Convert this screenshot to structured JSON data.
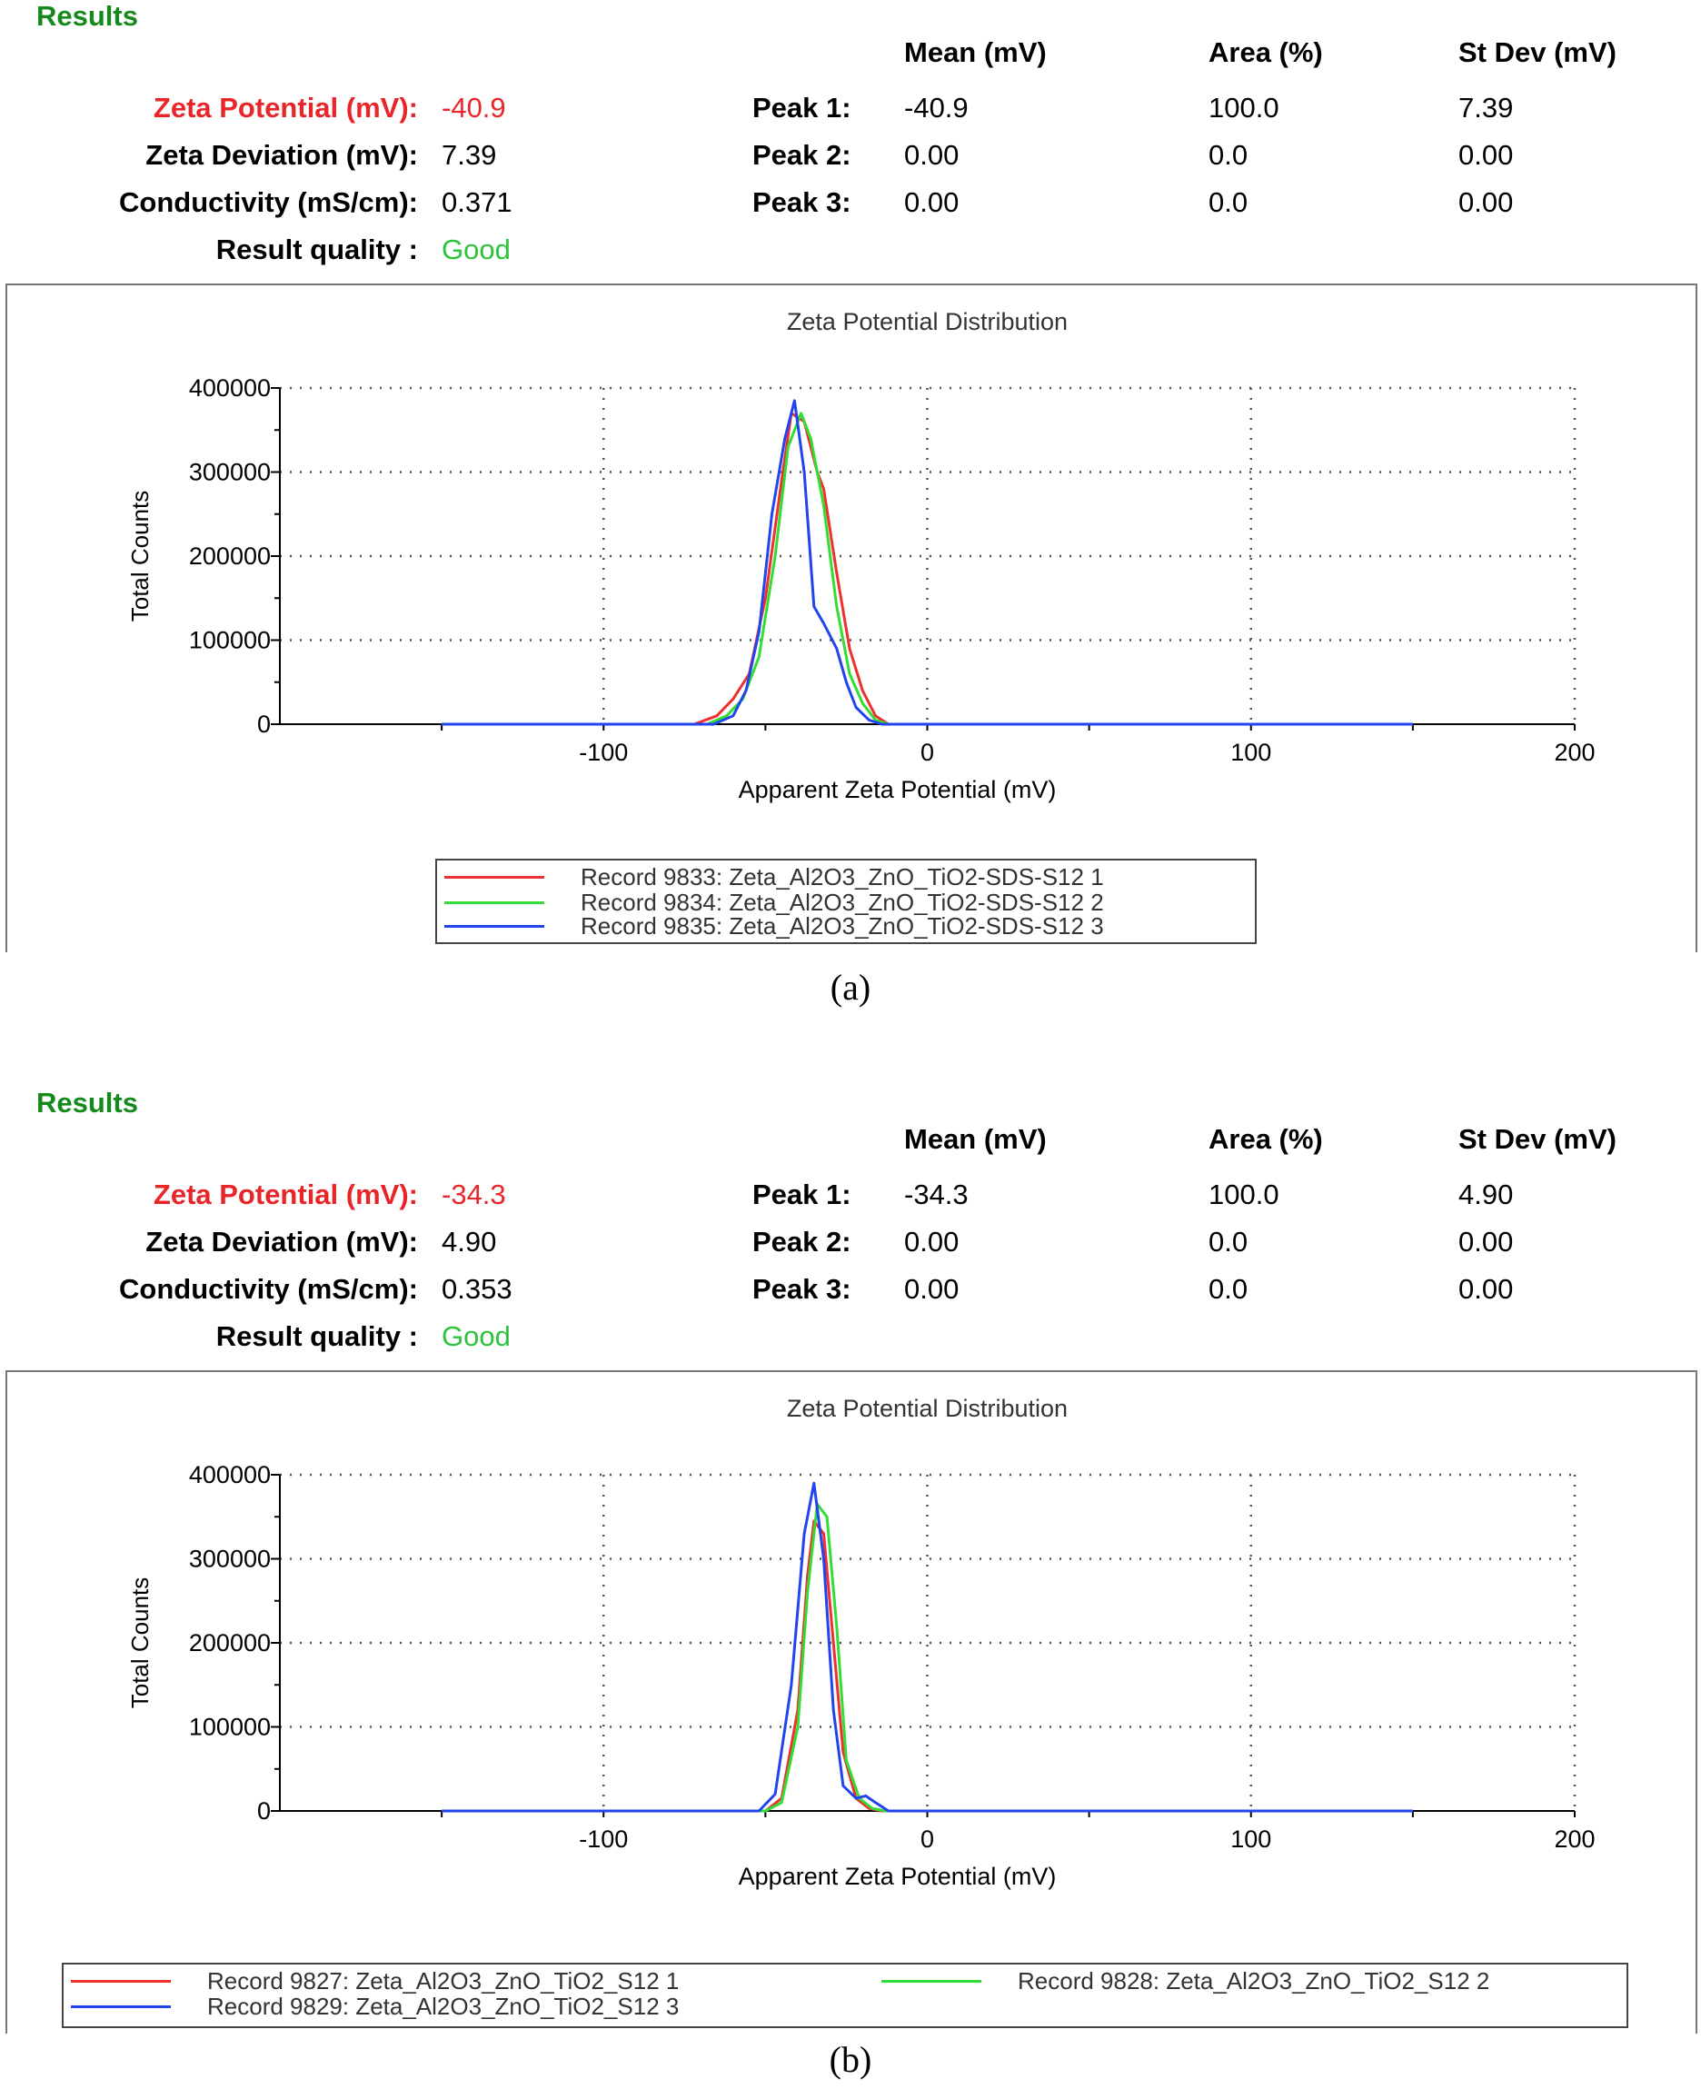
{
  "panels": [
    {
      "caption": "(a)",
      "results": {
        "heading": "Results",
        "columns": {
          "mean": "Mean (mV)",
          "area": "Area (%)",
          "stdev": "St Dev (mV)"
        },
        "zeta_potential_label": "Zeta Potential (mV):",
        "zeta_potential_value": "-40.9",
        "zeta_deviation_label": "Zeta Deviation (mV):",
        "zeta_deviation_value": "7.39",
        "conductivity_label": "Conductivity (mS/cm):",
        "conductivity_value": "0.371",
        "quality_label": "Result quality :",
        "quality_value": "Good",
        "peaks": [
          {
            "label": "Peak 1:",
            "mean": "-40.9",
            "area": "100.0",
            "stdev": "7.39"
          },
          {
            "label": "Peak 2:",
            "mean": "0.00",
            "area": "0.0",
            "stdev": "0.00"
          },
          {
            "label": "Peak 3:",
            "mean": "0.00",
            "area": "0.0",
            "stdev": "0.00"
          }
        ]
      }
    },
    {
      "caption": "(b)",
      "results": {
        "heading": "Results",
        "columns": {
          "mean": "Mean (mV)",
          "area": "Area (%)",
          "stdev": "St Dev (mV)"
        },
        "zeta_potential_label": "Zeta Potential (mV):",
        "zeta_potential_value": "-34.3",
        "zeta_deviation_label": "Zeta Deviation (mV):",
        "zeta_deviation_value": "4.90",
        "conductivity_label": "Conductivity (mS/cm):",
        "conductivity_value": "0.353",
        "quality_label": "Result quality :",
        "quality_value": "Good",
        "peaks": [
          {
            "label": "Peak 1:",
            "mean": "-34.3",
            "area": "100.0",
            "stdev": "4.90"
          },
          {
            "label": "Peak 2:",
            "mean": "0.00",
            "area": "0.0",
            "stdev": "0.00"
          },
          {
            "label": "Peak 3:",
            "mean": "0.00",
            "area": "0.0",
            "stdev": "0.00"
          }
        ]
      }
    }
  ],
  "chart_data": [
    {
      "type": "line",
      "title": "Zeta Potential Distribution",
      "xlabel": "Apparent Zeta Potential (mV)",
      "ylabel": "Total Counts",
      "xlim": [
        -200,
        200
      ],
      "ylim": [
        0,
        400000
      ],
      "xticks": [
        -100,
        0,
        100,
        200
      ],
      "yticks": [
        0,
        100000,
        200000,
        300000,
        400000
      ],
      "ytick_labels": [
        "0",
        "100000",
        "200000",
        "300000",
        "400000"
      ],
      "grid": true,
      "legend_position": "bottom-center",
      "series": [
        {
          "name": "Record 9833: Zeta_Al2O3_ZnO_TiO2-SDS-S12 1",
          "color": "#ee3030",
          "x": [
            -150,
            -72,
            -65,
            -60,
            -55,
            -50,
            -45,
            -42,
            -38,
            -34,
            -32,
            -28,
            -24,
            -20,
            -16,
            -12,
            0,
            150
          ],
          "y": [
            0,
            0,
            10000,
            30000,
            60000,
            150000,
            290000,
            370000,
            360000,
            300000,
            280000,
            180000,
            90000,
            40000,
            10000,
            0,
            0,
            0
          ]
        },
        {
          "name": "Record 9834: Zeta_Al2O3_ZnO_TiO2-SDS-S12 2",
          "color": "#33dd33",
          "x": [
            -150,
            -68,
            -62,
            -57,
            -52,
            -47,
            -43,
            -39,
            -36,
            -32,
            -28,
            -24,
            -20,
            -16,
            -12,
            0,
            150
          ],
          "y": [
            0,
            0,
            10000,
            30000,
            80000,
            200000,
            330000,
            370000,
            340000,
            260000,
            140000,
            60000,
            25000,
            5000,
            0,
            0,
            0
          ]
        },
        {
          "name": "Record 9835: Zeta_Al2O3_ZnO_TiO2-SDS-S12 3",
          "color": "#2244ee",
          "x": [
            -150,
            -66,
            -60,
            -56,
            -52,
            -48,
            -44,
            -41,
            -38,
            -35,
            -32,
            -28,
            -25,
            -22,
            -18,
            -14,
            0,
            150
          ],
          "y": [
            0,
            0,
            10000,
            40000,
            110000,
            250000,
            340000,
            385000,
            300000,
            140000,
            120000,
            90000,
            50000,
            20000,
            5000,
            0,
            0,
            0
          ]
        }
      ],
      "legend_entries": [
        "Record 9833: Zeta_Al2O3_ZnO_TiO2-SDS-S12 1",
        "Record 9834: Zeta_Al2O3_ZnO_TiO2-SDS-S12 2",
        "Record 9835: Zeta_Al2O3_ZnO_TiO2-SDS-S12 3"
      ]
    },
    {
      "type": "line",
      "title": "Zeta Potential Distribution",
      "xlabel": "Apparent Zeta Potential (mV)",
      "ylabel": "Total Counts",
      "xlim": [
        -200,
        200
      ],
      "ylim": [
        0,
        400000
      ],
      "xticks": [
        -100,
        0,
        100,
        200
      ],
      "yticks": [
        0,
        100000,
        200000,
        300000,
        400000
      ],
      "ytick_labels": [
        "0",
        "100000",
        "200000",
        "300000",
        "400000"
      ],
      "grid": true,
      "legend_position": "bottom-center",
      "series": [
        {
          "name": "Record 9827: Zeta_Al2O3_ZnO_TiO2_S12 1",
          "color": "#ee3030",
          "x": [
            -150,
            -50,
            -45,
            -40,
            -37,
            -35,
            -32,
            -29,
            -26,
            -22,
            -18,
            -14,
            0,
            150
          ],
          "y": [
            0,
            0,
            15000,
            120000,
            280000,
            345000,
            330000,
            200000,
            70000,
            15000,
            3000,
            0,
            0,
            0
          ]
        },
        {
          "name": "Record 9828: Zeta_Al2O3_ZnO_TiO2_S12 2",
          "color": "#33dd33",
          "x": [
            -150,
            -50,
            -45,
            -40,
            -37,
            -34,
            -31,
            -28,
            -25,
            -21,
            -17,
            -13,
            0,
            150
          ],
          "y": [
            0,
            0,
            10000,
            100000,
            260000,
            365000,
            350000,
            220000,
            60000,
            15000,
            3000,
            0,
            0,
            0
          ]
        },
        {
          "name": "Record 9829: Zeta_Al2O3_ZnO_TiO2_S12 3",
          "color": "#2244ee",
          "x": [
            -150,
            -52,
            -47,
            -42,
            -38,
            -35,
            -32,
            -29,
            -26,
            -22,
            -19,
            -16,
            -12,
            0,
            150
          ],
          "y": [
            0,
            0,
            20000,
            150000,
            330000,
            390000,
            300000,
            120000,
            30000,
            15000,
            18000,
            10000,
            0,
            0,
            0
          ]
        }
      ],
      "legend_entries": [
        "Record 9827: Zeta_Al2O3_ZnO_TiO2_S12 1",
        "Record 9828: Zeta_Al2O3_ZnO_TiO2_S12 2",
        "Record 9829: Zeta_Al2O3_ZnO_TiO2_S12 3"
      ]
    }
  ]
}
